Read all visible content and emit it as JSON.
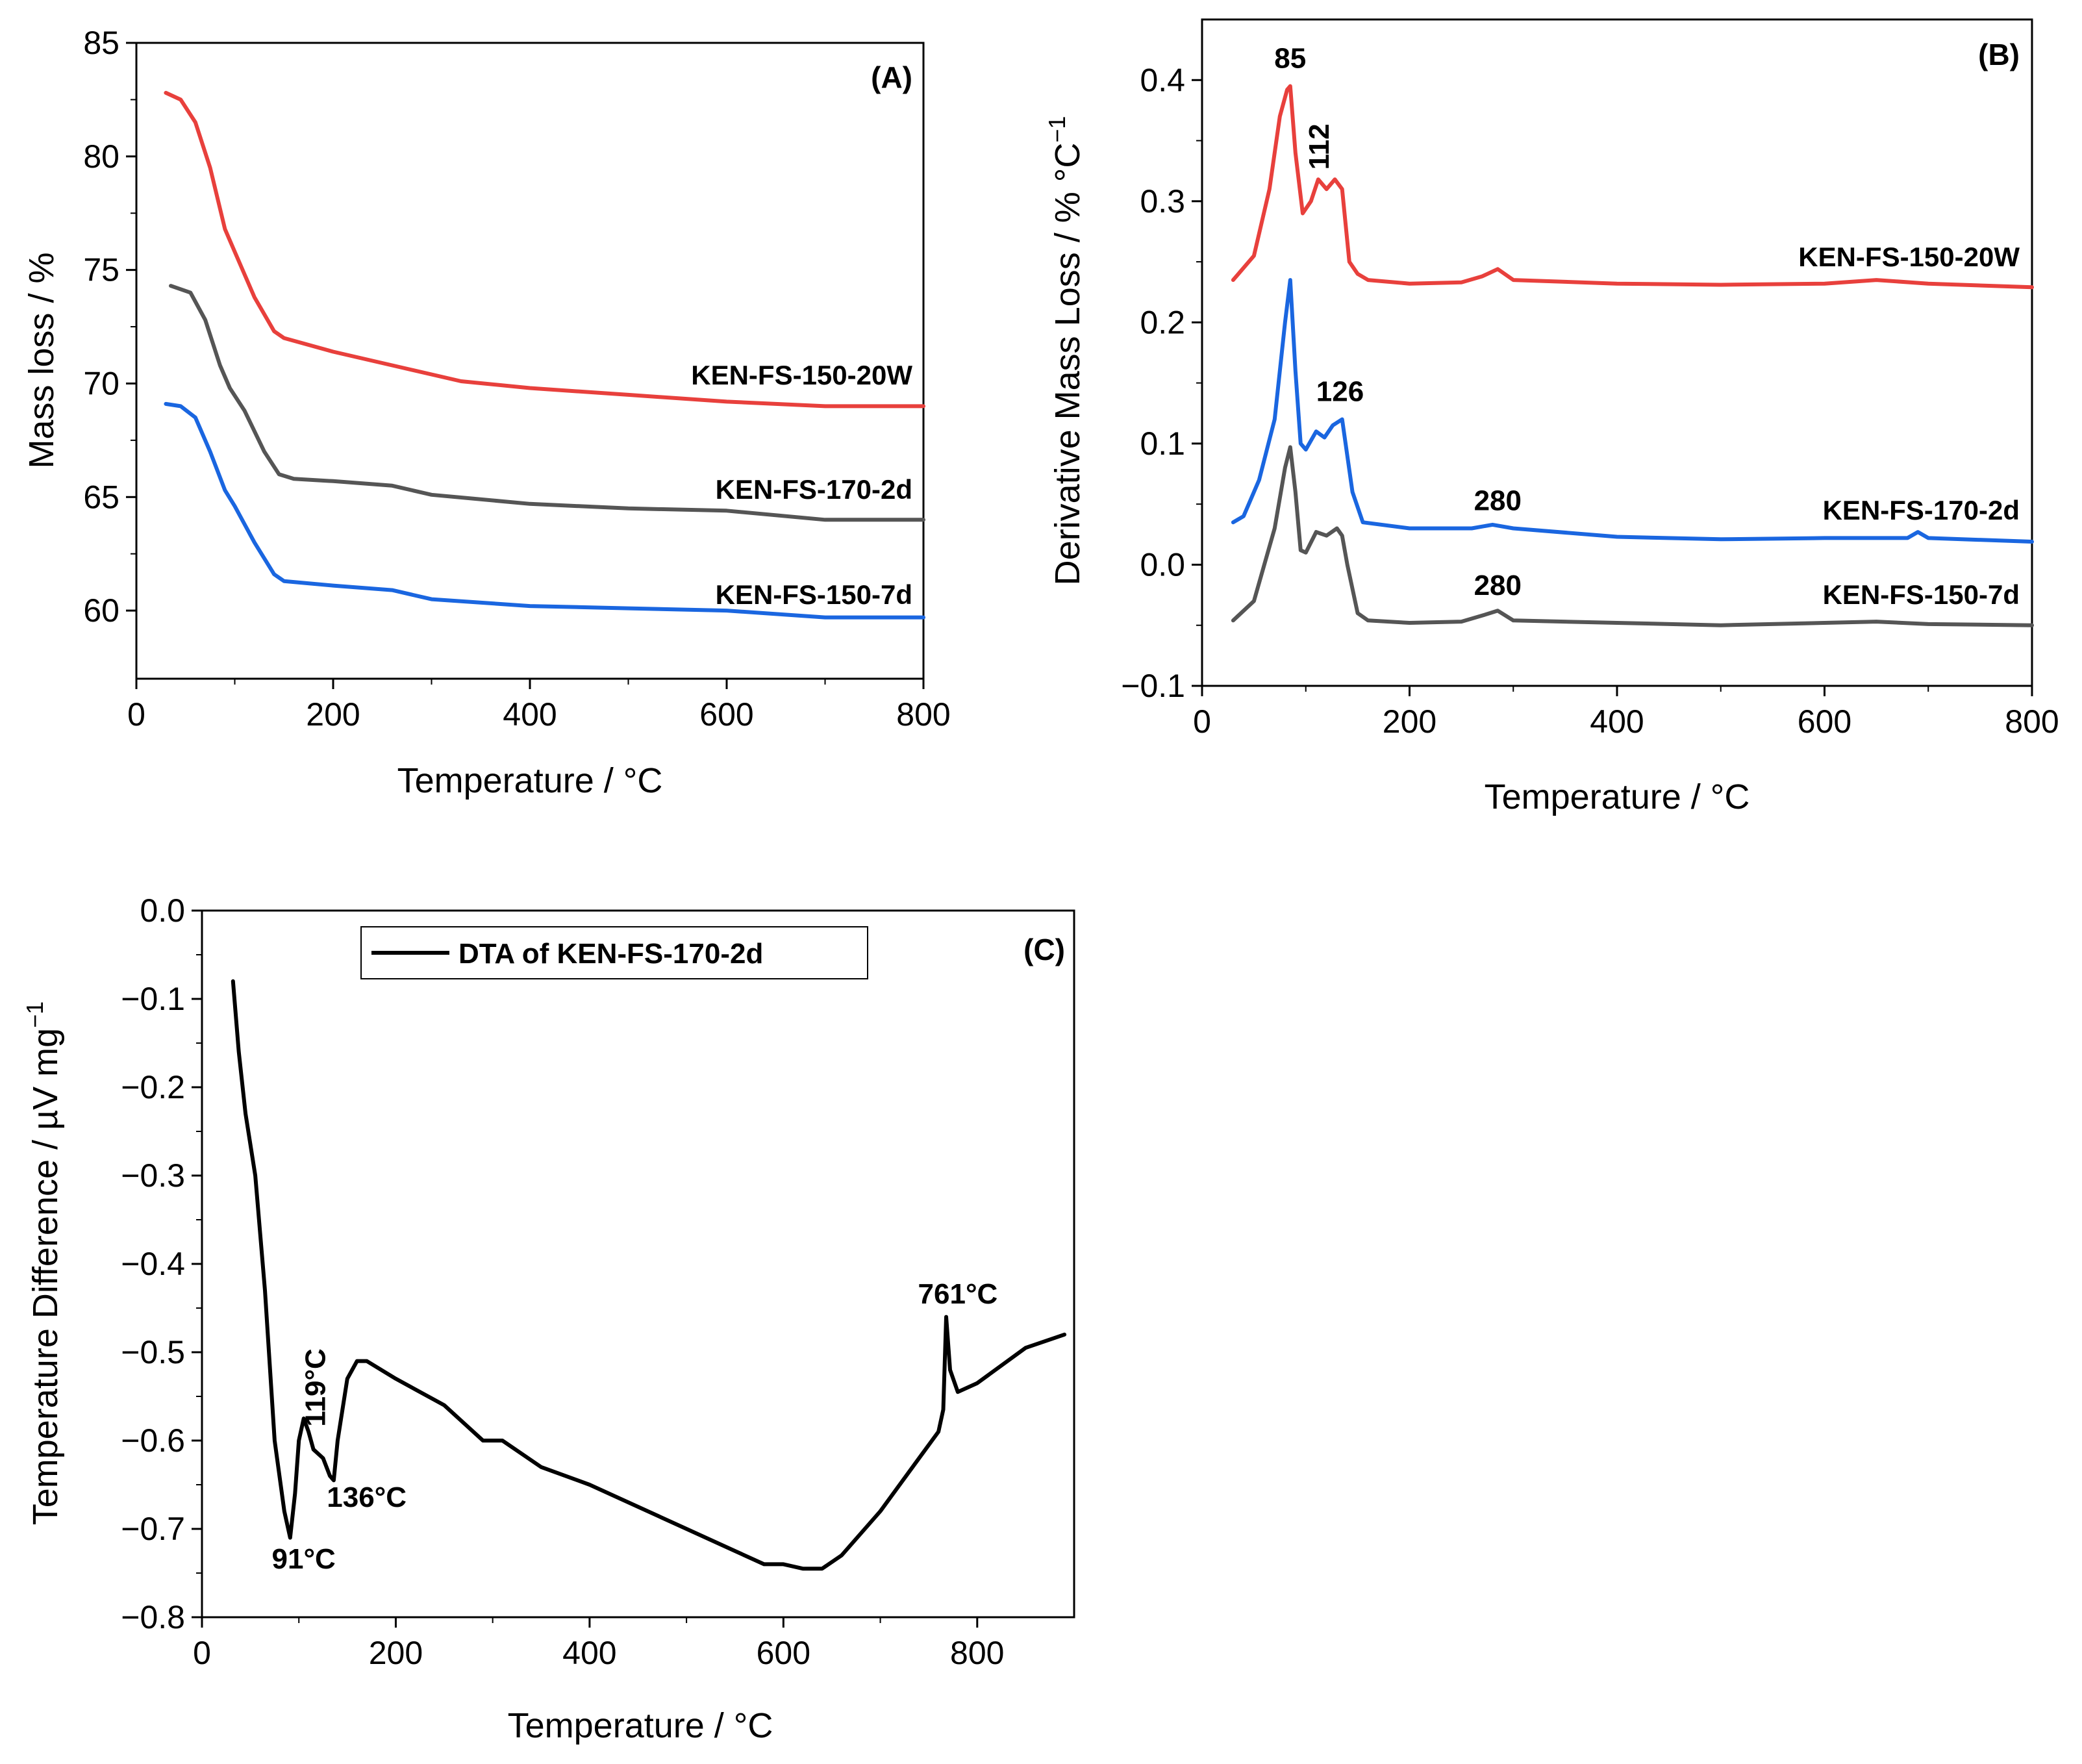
{
  "chart_data": [
    {
      "id": "A",
      "type": "line",
      "panel_label": "(A)",
      "xlabel": "Temperature / °C",
      "ylabel": "Mass loss / %",
      "xlim": [
        0,
        800
      ],
      "ylim": [
        57,
        85
      ],
      "xticks": [
        0,
        200,
        400,
        600,
        800
      ],
      "yticks": [
        60,
        65,
        70,
        75,
        80,
        85
      ],
      "series": [
        {
          "name": "KEN-FS-150-20W",
          "color": "#e8403c",
          "x": [
            30,
            45,
            60,
            75,
            90,
            100,
            120,
            140,
            150,
            200,
            270,
            330,
            400,
            500,
            600,
            700,
            800
          ],
          "y": [
            82.8,
            82.5,
            81.5,
            79.5,
            76.8,
            75.8,
            73.8,
            72.3,
            72.0,
            71.4,
            70.7,
            70.1,
            69.8,
            69.5,
            69.2,
            69.0,
            69.0
          ]
        },
        {
          "name": "KEN-FS-170-2d",
          "color": "#555555",
          "x": [
            35,
            55,
            70,
            85,
            95,
            110,
            130,
            145,
            160,
            200,
            260,
            300,
            400,
            500,
            600,
            700,
            800
          ],
          "y": [
            74.3,
            74.0,
            72.8,
            70.8,
            69.8,
            68.8,
            67.0,
            66.0,
            65.8,
            65.7,
            65.5,
            65.1,
            64.7,
            64.5,
            64.4,
            64.0,
            64.0
          ]
        },
        {
          "name": "KEN-FS-150-7d",
          "color": "#1a66e0",
          "x": [
            30,
            45,
            60,
            75,
            90,
            100,
            120,
            140,
            150,
            200,
            260,
            300,
            400,
            500,
            600,
            700,
            800
          ],
          "y": [
            69.1,
            69.0,
            68.5,
            67.0,
            65.3,
            64.6,
            63.0,
            61.6,
            61.3,
            61.1,
            60.9,
            60.5,
            60.2,
            60.1,
            60.0,
            59.7,
            59.7
          ]
        }
      ]
    },
    {
      "id": "B",
      "type": "line",
      "panel_label": "(B)",
      "xlabel": "Temperature / °C",
      "ylabel": "Derivative Mass Loss / % °C",
      "ylabel_sup": "−1",
      "xlim": [
        0,
        800
      ],
      "ylim": [
        -0.1,
        0.45
      ],
      "xticks": [
        0,
        200,
        400,
        600,
        800
      ],
      "yticks": [
        -0.1,
        0.0,
        0.1,
        0.2,
        0.3,
        0.4
      ],
      "ytick_labels": [
        "−0.1",
        "0.0",
        "0.1",
        "0.2",
        "0.3",
        "0.4"
      ],
      "series": [
        {
          "name": "KEN-FS-150-20W",
          "color": "#e8403c",
          "x": [
            30,
            50,
            65,
            75,
            82,
            85,
            90,
            97,
            105,
            112,
            120,
            128,
            135,
            142,
            150,
            160,
            200,
            250,
            270,
            285,
            300,
            400,
            500,
            600,
            650,
            700,
            800
          ],
          "y": [
            0.235,
            0.255,
            0.31,
            0.37,
            0.392,
            0.395,
            0.34,
            0.29,
            0.3,
            0.318,
            0.31,
            0.318,
            0.31,
            0.25,
            0.24,
            0.235,
            0.232,
            0.233,
            0.238,
            0.244,
            0.235,
            0.232,
            0.231,
            0.232,
            0.235,
            0.232,
            0.229
          ]
        },
        {
          "name": "KEN-FS-170-2d",
          "color": "#1a66e0",
          "x": [
            30,
            40,
            55,
            70,
            80,
            85,
            90,
            95,
            100,
            110,
            118,
            126,
            135,
            145,
            155,
            200,
            260,
            280,
            300,
            400,
            500,
            600,
            680,
            690,
            700,
            800
          ],
          "y": [
            0.035,
            0.04,
            0.07,
            0.12,
            0.2,
            0.235,
            0.16,
            0.1,
            0.095,
            0.11,
            0.105,
            0.115,
            0.12,
            0.06,
            0.035,
            0.03,
            0.03,
            0.033,
            0.03,
            0.023,
            0.021,
            0.022,
            0.022,
            0.027,
            0.022,
            0.019
          ]
        },
        {
          "name": "KEN-FS-150-7d",
          "color": "#555555",
          "x": [
            30,
            50,
            70,
            80,
            85,
            90,
            95,
            100,
            110,
            120,
            130,
            135,
            140,
            150,
            160,
            200,
            250,
            270,
            285,
            300,
            400,
            500,
            600,
            650,
            700,
            800
          ],
          "y": [
            -0.046,
            -0.03,
            0.03,
            0.08,
            0.097,
            0.06,
            0.012,
            0.01,
            0.027,
            0.024,
            0.03,
            0.024,
            0.0,
            -0.04,
            -0.046,
            -0.048,
            -0.047,
            -0.042,
            -0.038,
            -0.046,
            -0.048,
            -0.05,
            -0.048,
            -0.047,
            -0.049,
            -0.05
          ]
        }
      ],
      "annotations": [
        {
          "text": "85",
          "x": 85,
          "y": 0.41
        },
        {
          "text": "112",
          "x": 122,
          "y": 0.345,
          "rotate": true
        },
        {
          "text": "126",
          "x": 133,
          "y": 0.135
        },
        {
          "text": "280",
          "x": 285,
          "y": 0.045
        },
        {
          "text": "280",
          "x": 285,
          "y": -0.025
        }
      ]
    },
    {
      "id": "C",
      "type": "line",
      "panel_label": "(C)",
      "xlabel": "Temperature / °C",
      "ylabel": "Temperature Difference / µV mg",
      "ylabel_sup": "−1",
      "xlim": [
        0,
        900
      ],
      "ylim": [
        -0.8,
        0.0
      ],
      "xticks": [
        0,
        200,
        400,
        600,
        800
      ],
      "yticks": [
        0.0,
        -0.1,
        -0.2,
        -0.3,
        -0.4,
        -0.5,
        -0.6,
        -0.7,
        -0.8
      ],
      "ytick_labels": [
        "0.0",
        "−0.1",
        "−0.2",
        "−0.3",
        "−0.4",
        "−0.5",
        "−0.6",
        "−0.7",
        "−0.8"
      ],
      "legend": "DTA of KEN-FS-170-2d",
      "series": [
        {
          "name": "DTA of KEN-FS-170-2d",
          "color": "#000000",
          "x": [
            32,
            38,
            45,
            55,
            65,
            75,
            85,
            91,
            96,
            100,
            105,
            110,
            115,
            125,
            132,
            136,
            140,
            150,
            160,
            170,
            200,
            250,
            270,
            290,
            310,
            350,
            400,
            450,
            500,
            550,
            580,
            600,
            620,
            640,
            660,
            700,
            740,
            760,
            765,
            768,
            772,
            780,
            800,
            850,
            890
          ],
          "y": [
            -0.08,
            -0.16,
            -0.23,
            -0.3,
            -0.43,
            -0.6,
            -0.68,
            -0.71,
            -0.66,
            -0.6,
            -0.575,
            -0.59,
            -0.61,
            -0.62,
            -0.64,
            -0.645,
            -0.6,
            -0.53,
            -0.51,
            -0.51,
            -0.53,
            -0.56,
            -0.58,
            -0.6,
            -0.6,
            -0.63,
            -0.65,
            -0.675,
            -0.7,
            -0.725,
            -0.74,
            -0.74,
            -0.745,
            -0.745,
            -0.73,
            -0.68,
            -0.62,
            -0.59,
            -0.565,
            -0.46,
            -0.52,
            -0.545,
            -0.535,
            -0.495,
            -0.48
          ]
        }
      ],
      "annotations": [
        {
          "text": "91°C",
          "x": 105,
          "y": -0.745
        },
        {
          "text": "119°C",
          "x": 127,
          "y": -0.54,
          "rotate": true
        },
        {
          "text": "136°C",
          "x": 170,
          "y": -0.675
        },
        {
          "text": "761°C",
          "x": 780,
          "y": -0.445
        }
      ]
    }
  ]
}
